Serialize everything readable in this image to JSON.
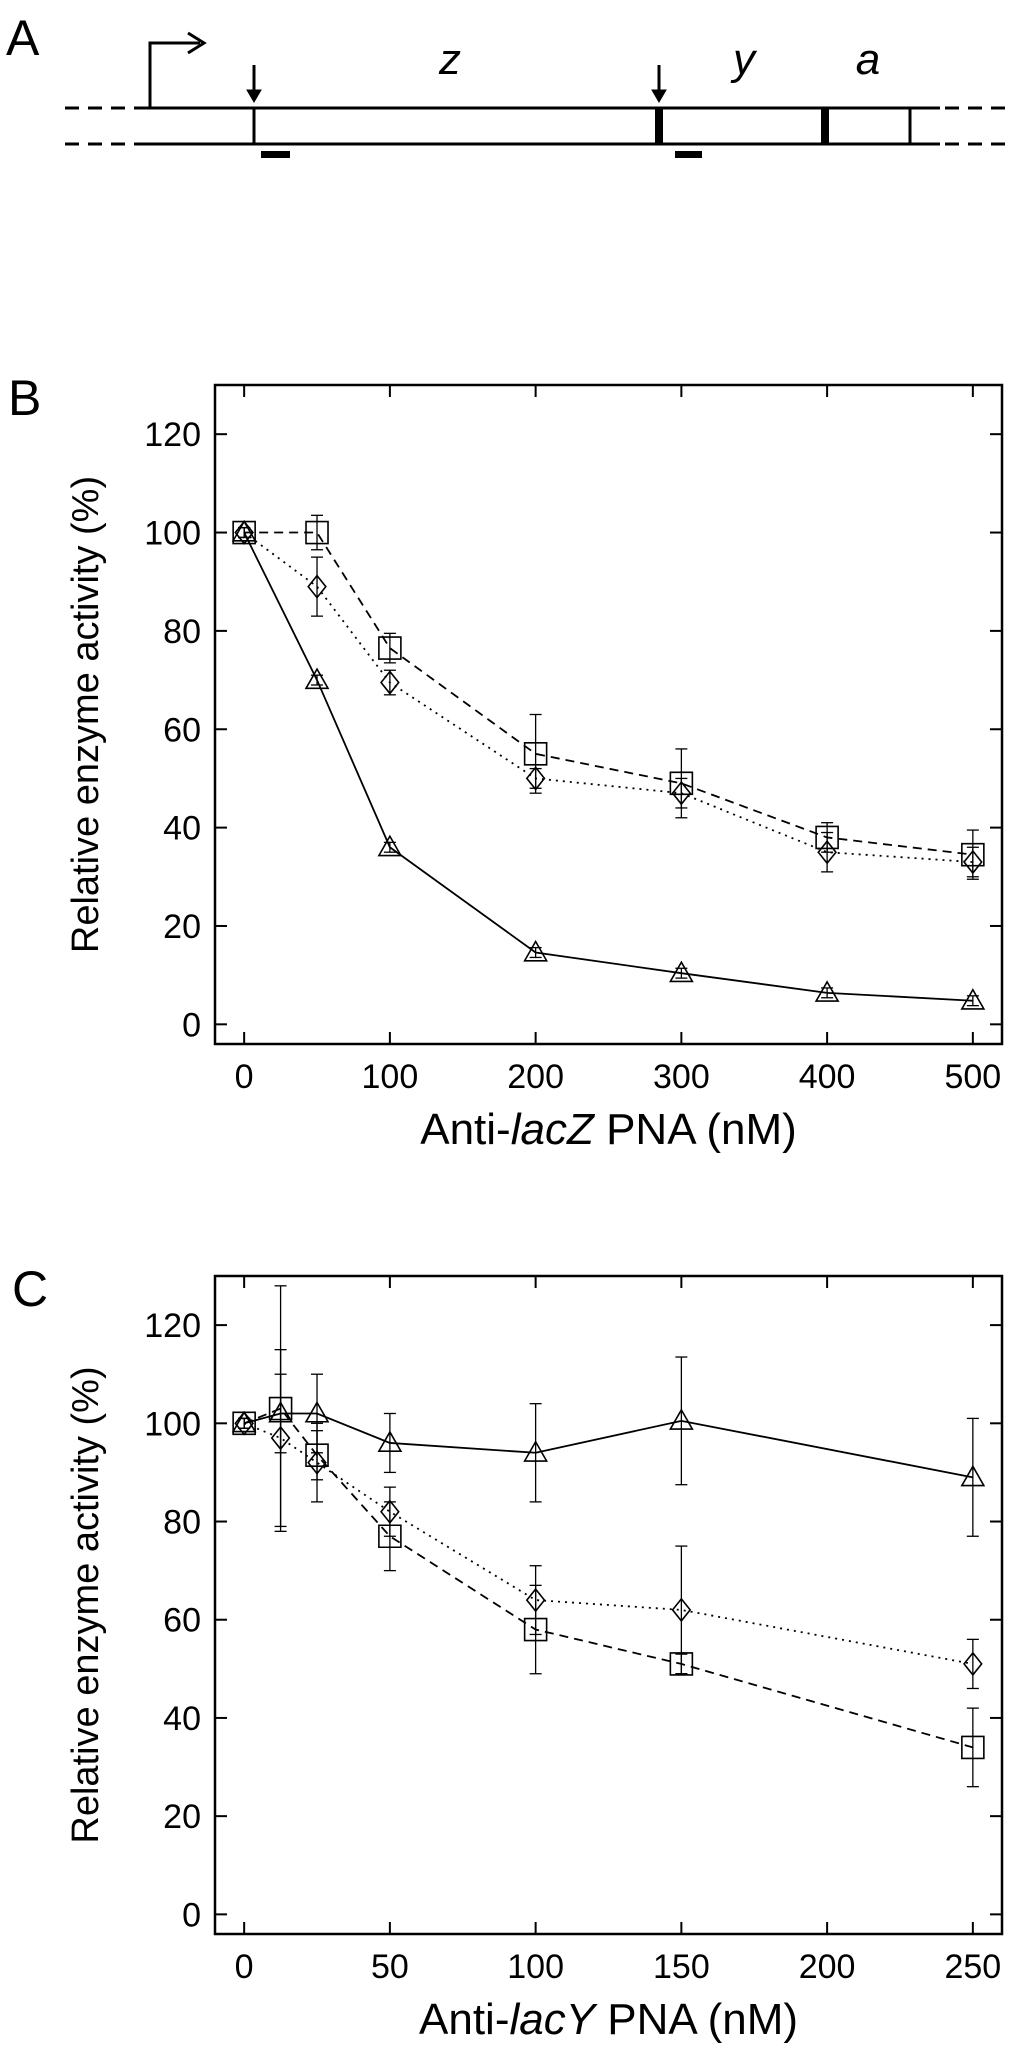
{
  "diagram": {
    "panel_label": "A",
    "genes": [
      "z",
      "y",
      "a"
    ]
  },
  "chart_data": [
    {
      "type": "line",
      "panel_label": "B",
      "x": [
        0,
        50,
        100,
        200,
        300,
        400,
        500
      ],
      "xlim": [
        -20,
        520
      ],
      "xticks": [
        0,
        100,
        200,
        300,
        400,
        500
      ],
      "ylim": [
        -4,
        130
      ],
      "yticks": [
        0,
        20,
        40,
        60,
        80,
        100,
        120
      ],
      "x_label": [
        "Anti-",
        "lacZ",
        " PNA (nM)"
      ],
      "y_label": "Relative enzyme activity (%)",
      "series": [
        {
          "marker": "triangle",
          "line_style": "solid",
          "color": "#000000",
          "values": [
            100,
            70,
            36,
            14.6,
            10.4,
            6.4,
            4.8
          ],
          "errors": [
            1,
            1,
            1,
            1,
            1,
            1,
            1
          ]
        },
        {
          "marker": "square",
          "line_style": "dashed",
          "color": "#000000",
          "values": [
            100,
            100,
            76.5,
            55,
            49,
            38,
            34.5
          ],
          "errors": [
            1,
            3.5,
            3,
            8,
            7,
            3,
            5
          ]
        },
        {
          "marker": "diamond",
          "line_style": "dotted",
          "color": "#000000",
          "values": [
            100,
            89,
            69.5,
            50,
            47,
            35,
            33
          ],
          "errors": [
            1,
            6,
            2.5,
            2,
            3,
            4,
            3
          ]
        }
      ]
    },
    {
      "type": "line",
      "panel_label": "C",
      "x": [
        0,
        12.5,
        25,
        50,
        100,
        150,
        250
      ],
      "xlim": [
        -10,
        260
      ],
      "xticks": [
        0,
        50,
        100,
        150,
        200,
        250
      ],
      "ylim": [
        -4,
        130
      ],
      "yticks": [
        0,
        20,
        40,
        60,
        80,
        100,
        120
      ],
      "x_label": [
        "Anti-",
        "lacY",
        " PNA (nM)"
      ],
      "y_label": "Relative enzyme activity (%)",
      "series": [
        {
          "marker": "triangle",
          "line_style": "solid",
          "color": "#000000",
          "values": [
            100,
            102,
            102,
            96,
            94,
            100.5,
            89
          ],
          "errors": [
            1,
            8,
            8,
            6,
            10,
            13,
            12
          ]
        },
        {
          "marker": "square",
          "line_style": "dashed",
          "color": "#000000",
          "values": [
            100,
            103,
            93.5,
            77,
            58,
            51,
            34
          ],
          "errors": [
            1,
            25,
            5,
            7,
            9,
            2,
            8
          ]
        },
        {
          "marker": "diamond",
          "line_style": "dotted",
          "color": "#000000",
          "values": [
            100,
            97,
            92,
            82,
            64,
            62,
            51
          ],
          "errors": [
            1,
            18,
            8,
            5,
            7,
            13,
            5
          ]
        }
      ]
    }
  ]
}
